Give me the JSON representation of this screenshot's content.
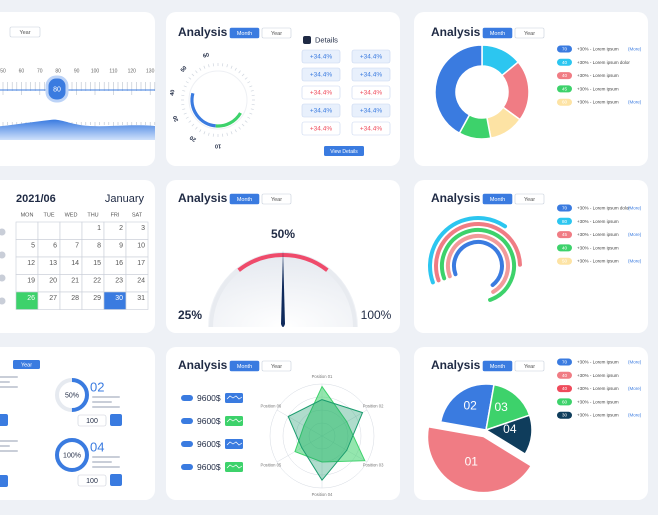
{
  "slider": {
    "tab": "Year",
    "ticks": [
      "50",
      "60",
      "70",
      "80",
      "90",
      "100",
      "110",
      "120",
      "130"
    ],
    "value": "80"
  },
  "details": {
    "title": "Analysis",
    "tabs": [
      "Month",
      "Year"
    ],
    "ring_labels": [
      "60",
      "50",
      "40",
      "30",
      "20",
      "10"
    ],
    "heading": "Details",
    "buttons": [
      {
        "label": "+34.4%",
        "color": "#3a7be0"
      },
      {
        "label": "+34.4%",
        "color": "#3a7be0"
      },
      {
        "label": "+34.4%",
        "color": "#3a7be0"
      },
      {
        "label": "+34.4%",
        "color": "#3a7be0"
      },
      {
        "label": "+34.4%",
        "color": "#ef4b5b"
      },
      {
        "label": "+34.4%",
        "color": "#ef4b5b"
      },
      {
        "label": "+34.4%",
        "color": "#3a7be0"
      },
      {
        "label": "+34.4%",
        "color": "#3a7be0"
      },
      {
        "label": "+34.4%",
        "color": "#ef4b5b"
      },
      {
        "label": "+34.4%",
        "color": "#ef4b5b"
      }
    ],
    "action": "View Details"
  },
  "donut": {
    "title": "Analysis",
    "tabs": [
      "Month",
      "Year"
    ],
    "values": [
      14,
      21,
      12,
      11,
      42
    ],
    "colors": [
      "#2cc6f0",
      "#f07c84",
      "#fde3a4",
      "#3dd26b",
      "#3a7be0"
    ],
    "legend": [
      {
        "badge": "70",
        "text": "+30% - Lorem ipsum",
        "color": "#3a7be0",
        "link": "(More)"
      },
      {
        "badge": "40",
        "text": "+30% - Lorem ipsum dolor",
        "color": "#2cc6f0"
      },
      {
        "badge": "40",
        "text": "+30% - Lorem ipsum",
        "color": "#f07c84"
      },
      {
        "badge": "45",
        "text": "+30% - Lorem ipsum",
        "color": "#3dd26b"
      },
      {
        "badge": "60",
        "text": "+30% - Lorem ipsum",
        "color": "#fde3a4",
        "link": "(More)"
      }
    ]
  },
  "calendar": {
    "year": "2021/06",
    "month": "January",
    "weekdays": [
      "MON",
      "TUE",
      "WED",
      "THU",
      "FRI",
      "SAT"
    ],
    "weeks": [
      [
        "",
        "",
        "",
        "1",
        "2",
        "3"
      ],
      [
        "5",
        "6",
        "7",
        "8",
        "9",
        "10"
      ],
      [
        "12",
        "13",
        "14",
        "15",
        "16",
        "17"
      ],
      [
        "19",
        "20",
        "21",
        "22",
        "23",
        "24"
      ],
      [
        {
          "text": "26",
          "color": "#3dd26b"
        },
        "27",
        "28",
        "29",
        {
          "text": "30",
          "color": "#3a7be0"
        },
        "31"
      ]
    ]
  },
  "gauge": {
    "title": "Analysis",
    "tabs": [
      "Month",
      "Year"
    ],
    "value": "50%",
    "min": "25%",
    "max": "100%"
  },
  "radial": {
    "title": "Analysis",
    "tabs": [
      "Month",
      "Year"
    ],
    "values": [
      40,
      55,
      75,
      72,
      70
    ],
    "colors": [
      "#2cc6f0",
      "#f07c84",
      "#3dd26b",
      "#f29a9a",
      "#3a7be0"
    ],
    "legend": [
      {
        "badge": "70",
        "text": "+30% - Lorem ipsum dolor",
        "color": "#3a7be0",
        "link": "(More)"
      },
      {
        "badge": "80",
        "text": "+30% - Lorem ipsum",
        "color": "#2cc6f0"
      },
      {
        "badge": "45",
        "text": "+30% - Lorem ipsum",
        "color": "#f07c84",
        "link": "(More)"
      },
      {
        "badge": "40",
        "text": "+30% - Lorem ipsum",
        "color": "#3dd26b"
      },
      {
        "badge": "50",
        "text": "+30% - Lorem ipsum",
        "color": "#fde3a4",
        "link": "(More)"
      }
    ]
  },
  "progress": {
    "tab": "Year",
    "items": [
      {
        "value": 50,
        "value_label": "50%",
        "number": "02",
        "input": "100"
      },
      {
        "value": 100,
        "value_label": "100%",
        "number": "04",
        "input": "100"
      }
    ]
  },
  "radar": {
    "title": "Analysis",
    "tabs": [
      "Month",
      "Year"
    ],
    "amounts": [
      "9600$",
      "9600$",
      "9600$",
      "9600$"
    ],
    "axes": [
      "Position 01",
      "Position 02",
      "Position 03",
      "Position 04",
      "Position 05",
      "Position 06"
    ],
    "rmax": 100,
    "series": [
      {
        "color": "#3dd26b",
        "values": [
          95,
          55,
          95,
          50,
          60,
          40
        ]
      },
      {
        "color": "#1a9c6e",
        "values": [
          70,
          90,
          55,
          85,
          45,
          75
        ]
      }
    ]
  },
  "pie": {
    "title": "Analysis",
    "tabs": [
      "Month",
      "Year"
    ],
    "segments": [
      {
        "label": "02",
        "value": 25,
        "color": "#3a7be0"
      },
      {
        "label": "03",
        "value": 17,
        "color": "#3dd26b"
      },
      {
        "label": "04",
        "value": 14,
        "color": "#0f3d5c"
      },
      {
        "label": "01",
        "value": 44,
        "color": "#f07c84"
      }
    ],
    "legend": [
      {
        "badge": "70",
        "text": "+30% - Lorem ipsum",
        "color": "#3a7be0",
        "link": "(More)"
      },
      {
        "badge": "40",
        "text": "+30% - Lorem ipsum",
        "color": "#f07c84"
      },
      {
        "badge": "40",
        "text": "+30% - Lorem ipsum",
        "color": "#ef4b5b",
        "link": "(More)"
      },
      {
        "badge": "60",
        "text": "+30% - Lorem ipsum",
        "color": "#3dd26b"
      },
      {
        "badge": "30",
        "text": "+30% - Lorem ipsum",
        "color": "#0f3d5c",
        "link": "(More)"
      }
    ]
  }
}
